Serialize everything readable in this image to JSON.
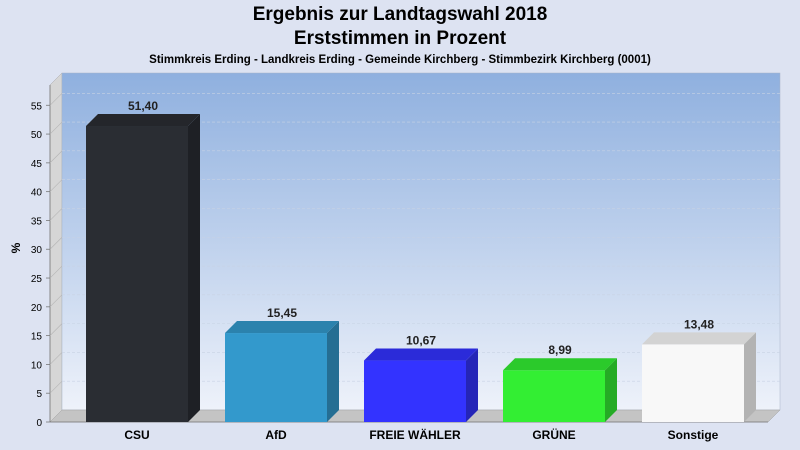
{
  "chart_data": {
    "type": "bar",
    "title": "Ergebnis zur Landtagswahl 2018",
    "title2": "Erststimmen in Prozent",
    "subtitle": "Stimmkreis Erding - Landkreis Erding - Gemeinde Kirchberg - Stimmbezirk Kirchberg (0001)",
    "ylabel": "%",
    "xlabel": "",
    "ylim": [
      0,
      58
    ],
    "yticks": [
      0,
      5,
      10,
      15,
      20,
      25,
      30,
      35,
      40,
      45,
      50,
      55
    ],
    "grid": true,
    "categories": [
      "CSU",
      "AfD",
      "FREIE WÄHLER",
      "GRÜNE",
      "Sonstige"
    ],
    "values": [
      51.4,
      15.45,
      10.67,
      8.99,
      13.48
    ],
    "value_labels": [
      "51,40",
      "15,45",
      "10,67",
      "8,99",
      "13,48"
    ],
    "colors": [
      "#2a2d33",
      "#3399cc",
      "#3333ff",
      "#33ee33",
      "#f8f8f8"
    ]
  }
}
